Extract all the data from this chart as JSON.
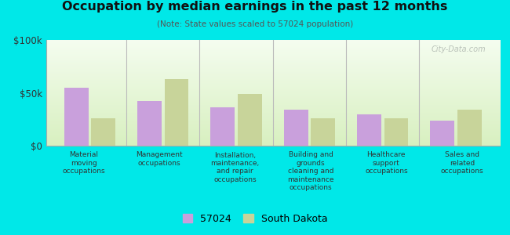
{
  "title": "Occupation by median earnings in the past 12 months",
  "subtitle": "(Note: State values scaled to 57024 population)",
  "categories": [
    "Material\nmoving\noccupations",
    "Management\noccupations",
    "Installation,\nmaintenance,\nand repair\noccupations",
    "Building and\ngrounds\ncleaning and\nmaintenance\noccupations",
    "Healthcare\nsupport\noccupations",
    "Sales and\nrelated\noccupations"
  ],
  "values_57024": [
    55000,
    42000,
    36000,
    34000,
    30000,
    24000
  ],
  "values_sd": [
    26000,
    63000,
    49000,
    26000,
    26000,
    34000
  ],
  "color_57024": "#c9a0dc",
  "color_sd": "#c8d49a",
  "ylim": [
    0,
    100000
  ],
  "ytick_labels": [
    "$0",
    "$50k",
    "$100k"
  ],
  "legend_labels": [
    "57024",
    "South Dakota"
  ],
  "bg_top": "#f5fdf0",
  "bg_bottom": "#d8f0c0",
  "outer_bg": "#00e8e8",
  "sep_color": "#bbbbbb",
  "watermark": "City-Data.com"
}
